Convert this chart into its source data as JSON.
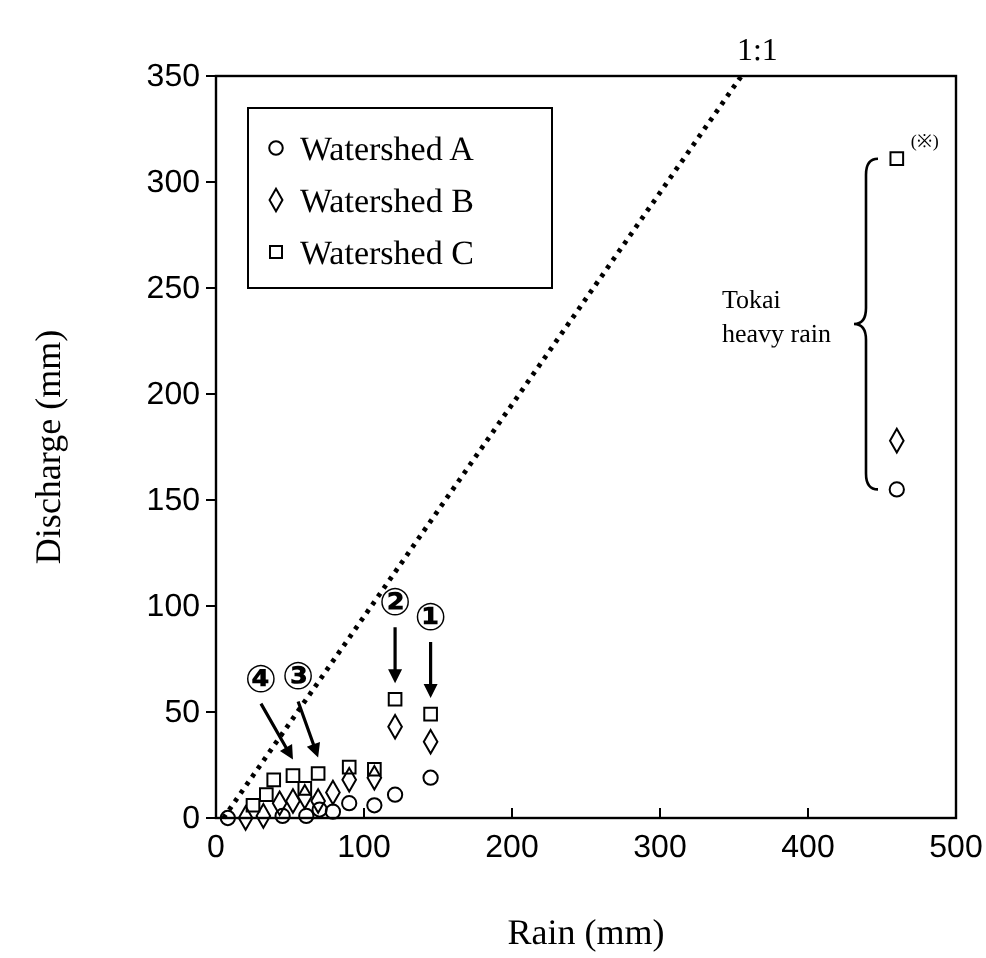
{
  "chart_data": {
    "type": "scatter",
    "xlabel": "Rain (mm)",
    "ylabel": "Discharge (mm)",
    "xlim": [
      0,
      500
    ],
    "xticks": [
      0,
      100,
      200,
      300,
      400,
      500
    ],
    "ylim": [
      0,
      350
    ],
    "yticks": [
      0,
      50,
      100,
      150,
      200,
      250,
      300,
      350
    ],
    "grid": false,
    "legend": "top left",
    "series": [
      {
        "name": "Watershed A",
        "color": "#000000",
        "marker": "circle",
        "x": [
          8,
          45,
          61,
          70,
          79,
          90,
          107,
          121,
          145,
          460
        ],
        "values": [
          0,
          1,
          1,
          4,
          3,
          7,
          6,
          11,
          19,
          155
        ]
      },
      {
        "name": "Watershed B",
        "color": "#000000",
        "marker": "diamond",
        "x": [
          20,
          32,
          43,
          52,
          60,
          69,
          79,
          90,
          107,
          121,
          145,
          460
        ],
        "values": [
          0,
          1,
          7,
          8,
          10,
          8,
          12,
          18,
          19,
          43,
          36,
          178
        ]
      },
      {
        "name": "Watershed C",
        "color": "#000000",
        "marker": "square",
        "x": [
          25,
          34,
          39,
          52,
          60,
          69,
          90,
          107,
          121,
          145,
          460
        ],
        "values": [
          6,
          11,
          18,
          20,
          14,
          21,
          24,
          23,
          56,
          49,
          311
        ]
      },
      {
        "type": "line",
        "color": "#000000",
        "line_style": "dotted",
        "marker": "none",
        "x": [
          5,
          355
        ],
        "values": [
          0,
          350
        ]
      }
    ],
    "annotations": [
      {
        "text": "1:1",
        "x": 355,
        "y": 350
      },
      {
        "text": "①",
        "x": 145,
        "y": 49
      },
      {
        "text": "②",
        "x": 121,
        "y": 56
      },
      {
        "text": "③",
        "x": 69,
        "y": 21
      },
      {
        "text": "④",
        "x": 52,
        "y": 20
      },
      {
        "text": "(※)",
        "x": 460,
        "y": 311
      },
      "Tokai heavy rain"
    ]
  }
}
